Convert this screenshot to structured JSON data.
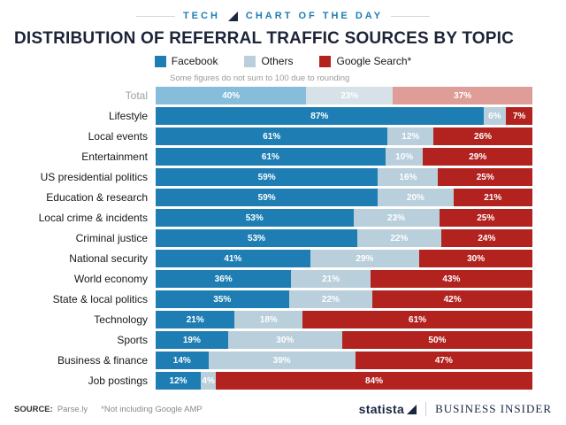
{
  "kicker": {
    "left": "TECH",
    "right": "CHART OF THE DAY"
  },
  "title": "DISTRIBUTION OF REFERRAL TRAFFIC SOURCES BY TOPIC",
  "legend": [
    {
      "label": "Facebook",
      "color": "#1e7eb4"
    },
    {
      "label": "Others",
      "color": "#b9cfdb"
    },
    {
      "label": "Google Search*",
      "color": "#b2231f"
    }
  ],
  "note": "Some figures do not sum to 100 due to rounding",
  "chart_data": {
    "type": "bar",
    "orientation": "horizontal",
    "stacked": true,
    "unit": "%",
    "xlim": [
      0,
      100
    ],
    "grid": false,
    "legend_position": "top",
    "muted_category": "Total",
    "categories": [
      "Total",
      "Lifestyle",
      "Local events",
      "Entertainment",
      "US presidential politics",
      "Education & research",
      "Local crime & incidents",
      "Criminal justice",
      "National security",
      "World economy",
      "State & local politics",
      "Technology",
      "Sports",
      "Business & finance",
      "Job postings"
    ],
    "series": [
      {
        "key": "facebook",
        "name": "Facebook",
        "color": "#1e7eb4",
        "muted_color": "#85bdda",
        "values": [
          40,
          87,
          61,
          61,
          59,
          59,
          53,
          53,
          41,
          36,
          35,
          21,
          19,
          14,
          12
        ]
      },
      {
        "key": "others",
        "name": "Others",
        "color": "#b9cfdb",
        "muted_color": "#d7e1e8",
        "values": [
          23,
          6,
          12,
          10,
          16,
          20,
          23,
          22,
          29,
          21,
          22,
          18,
          30,
          39,
          4
        ]
      },
      {
        "key": "google-search",
        "name": "Google Search*",
        "color": "#b2231f",
        "muted_color": "#df9d97",
        "values": [
          37,
          7,
          26,
          29,
          25,
          21,
          25,
          24,
          30,
          43,
          42,
          61,
          50,
          47,
          84
        ]
      }
    ],
    "title": "DISTRIBUTION OF REFERRAL TRAFFIC SOURCES BY TOPIC"
  },
  "footer": {
    "source_label": "SOURCE:",
    "source_value": "Parse.ly",
    "footnote": "*Not including Google AMP",
    "statista": "statista",
    "business_insider": "BUSINESS INSIDER"
  },
  "colors": {
    "accent_blue": "#1e7eb4",
    "dark_navy": "#1a2742",
    "muted_text": "#9aa0a6"
  }
}
